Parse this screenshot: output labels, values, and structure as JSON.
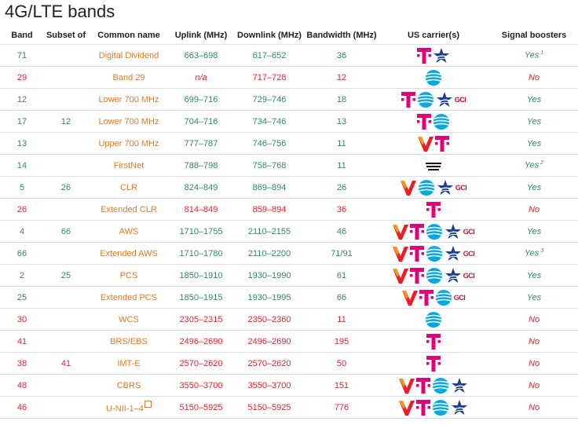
{
  "page": {
    "title": "4G/LTE bands"
  },
  "table": {
    "headers": [
      "Band",
      "Subset of",
      "Common name",
      "Uplink (MHz)",
      "Downlink (MHz)",
      "Bandwidth (MHz)",
      "US carrier(s)",
      "Signal boosters"
    ],
    "rows": [
      {
        "band": "71",
        "subset": "",
        "name": "Digital Dividend",
        "uplink": "663–698",
        "downlink": "617–652",
        "bandwidth": "36",
        "carriers": [
          "tmobile",
          "uscellular"
        ],
        "boosters": "Yes",
        "note": "1",
        "color": "green"
      },
      {
        "band": "29",
        "subset": "",
        "name": "Band 29",
        "uplink": "n/a",
        "downlink": "717–728",
        "bandwidth": "12",
        "carriers": [
          "att"
        ],
        "boosters": "No",
        "note": "",
        "color": "red"
      },
      {
        "band": "12",
        "subset": "",
        "name": "Lower 700 MHz",
        "uplink": "699–716",
        "downlink": "729–746",
        "bandwidth": "18",
        "carriers": [
          "tmobile",
          "att",
          "uscellular",
          "gci"
        ],
        "boosters": "Yes",
        "note": "",
        "color": "green"
      },
      {
        "band": "17",
        "subset": "12",
        "name": "Lower 700 MHz",
        "uplink": "704–716",
        "downlink": "734–746",
        "bandwidth": "13",
        "carriers": [
          "tmobile",
          "att"
        ],
        "boosters": "Yes",
        "note": "",
        "color": "green"
      },
      {
        "band": "13",
        "subset": "",
        "name": "Upper 700 MHz",
        "uplink": "777–787",
        "downlink": "746–756",
        "bandwidth": "11",
        "carriers": [
          "verizon",
          "tmobile"
        ],
        "boosters": "Yes",
        "note": "",
        "color": "green"
      },
      {
        "band": "14",
        "subset": "",
        "name": "FirstNet",
        "uplink": "788–798",
        "downlink": "758–768",
        "bandwidth": "11",
        "carriers": [
          "firstnet"
        ],
        "boosters": "Yes",
        "note": "2",
        "color": "green"
      },
      {
        "band": "5",
        "subset": "26",
        "name": "CLR",
        "uplink": "824–849",
        "downlink": "869–894",
        "bandwidth": "26",
        "carriers": [
          "verizon",
          "att",
          "uscellular",
          "gci"
        ],
        "boosters": "Yes",
        "note": "",
        "color": "green"
      },
      {
        "band": "26",
        "subset": "",
        "name": "Extended CLR",
        "uplink": "814–849",
        "downlink": "859–894",
        "bandwidth": "36",
        "carriers": [
          "tmobile"
        ],
        "boosters": "No",
        "note": "",
        "color": "red"
      },
      {
        "band": "4",
        "subset": "66",
        "name": "AWS",
        "uplink": "1710–1755",
        "downlink": "2110–2155",
        "bandwidth": "46",
        "carriers": [
          "verizon",
          "tmobile",
          "att",
          "uscellular",
          "gci"
        ],
        "boosters": "Yes",
        "note": "",
        "color": "green"
      },
      {
        "band": "66",
        "subset": "",
        "name": "Extended AWS",
        "uplink": "1710–1780",
        "downlink": "2110–2200",
        "bandwidth": "71/91",
        "carriers": [
          "verizon",
          "tmobile",
          "att",
          "uscellular",
          "gci"
        ],
        "boosters": "Yes",
        "note": "3",
        "color": "green"
      },
      {
        "band": "2",
        "subset": "25",
        "name": "PCS",
        "uplink": "1850–1910",
        "downlink": "1930–1990",
        "bandwidth": "61",
        "carriers": [
          "verizon",
          "tmobile",
          "att",
          "uscellular",
          "gci"
        ],
        "boosters": "Yes",
        "note": "",
        "color": "green"
      },
      {
        "band": "25",
        "subset": "",
        "name": "Extended PCS",
        "uplink": "1850–1915",
        "downlink": "1930–1995",
        "bandwidth": "66",
        "carriers": [
          "verizon",
          "tmobile",
          "att",
          "gci"
        ],
        "boosters": "Yes",
        "note": "",
        "color": "green"
      },
      {
        "band": "30",
        "subset": "",
        "name": "WCS",
        "uplink": "2305–2315",
        "downlink": "2350–2360",
        "bandwidth": "11",
        "carriers": [
          "att"
        ],
        "boosters": "No",
        "note": "",
        "color": "red"
      },
      {
        "band": "41",
        "subset": "",
        "name": "BRS/EBS",
        "uplink": "2496–2690",
        "downlink": "2496–2690",
        "bandwidth": "195",
        "carriers": [
          "tmobile"
        ],
        "boosters": "No",
        "note": "",
        "color": "red"
      },
      {
        "band": "38",
        "subset": "41",
        "name": "IMT-E",
        "uplink": "2570–2620",
        "downlink": "2570–2620",
        "bandwidth": "50",
        "carriers": [
          "tmobile"
        ],
        "boosters": "No",
        "note": "",
        "color": "red"
      },
      {
        "band": "48",
        "subset": "",
        "name": "CBRS",
        "uplink": "3550–3700",
        "downlink": "3550–3700",
        "bandwidth": "151",
        "carriers": [
          "verizon",
          "tmobile",
          "att",
          "uscellular"
        ],
        "boosters": "No",
        "note": "",
        "color": "red"
      },
      {
        "band": "46",
        "subset": "",
        "name": "U-NII-1–4",
        "uplink": "5150–5925",
        "downlink": "5150–5925",
        "bandwidth": "776",
        "carriers": [
          "verizon",
          "tmobile",
          "att",
          "uscellular"
        ],
        "boosters": "No",
        "note": "",
        "color": "red",
        "external_link": true
      }
    ]
  },
  "logos": {
    "gci": "GCI"
  },
  "colors": {
    "green": "#2e8b57",
    "red": "#e8202c",
    "orange": "#e07a1f",
    "tmobile": "#e20074",
    "att": "#00a8e0",
    "uscellular": "#1c3f94",
    "verizon_red": "#ee1c25",
    "verizon_orange": "#f7941d"
  }
}
